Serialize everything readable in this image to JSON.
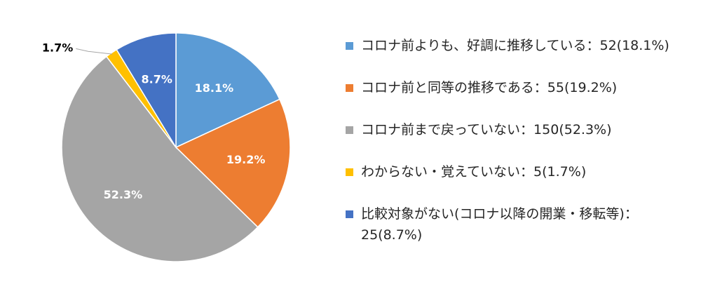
{
  "chart_data": {
    "type": "pie",
    "start_angle_deg": 0,
    "direction": "clockwise",
    "slices": [
      {
        "label": "コロナ前よりも、好調に推移している：52(18.1%)",
        "value": 18.1,
        "count": 52,
        "data_label": "18.1%",
        "color": "#5B9BD5"
      },
      {
        "label": "コロナ前と同等の推移である：55(19.2%)",
        "value": 19.2,
        "count": 55,
        "data_label": "19.2%",
        "color": "#ED7D31"
      },
      {
        "label": "コロナ前まで戻っていない：150(52.3%)",
        "value": 52.3,
        "count": 150,
        "data_label": "52.3%",
        "color": "#A5A5A5"
      },
      {
        "label": "わからない・覚えていない：5(1.7%)",
        "value": 1.7,
        "count": 5,
        "data_label": "1.7%",
        "color": "#FFC000"
      },
      {
        "label": "比較対象がない(コロナ以降の開業・移転等)：25(8.7%)",
        "value": 8.7,
        "count": 25,
        "data_label": "8.7%",
        "color": "#4472C4"
      }
    ],
    "legend_position": "right"
  }
}
